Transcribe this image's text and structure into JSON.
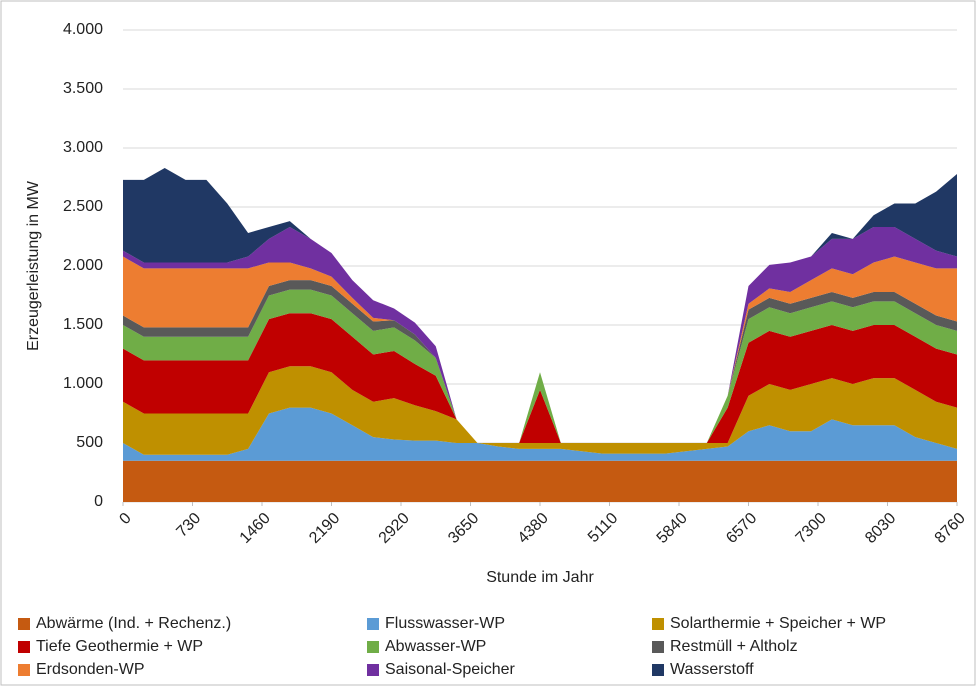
{
  "chart_data": {
    "type": "stacked_area",
    "y_label": "Erzeugerleistung in MW",
    "x_label": "Stunde im Jahr",
    "x": [
      0,
      219,
      438,
      657,
      876,
      1095,
      1314,
      1533,
      1752,
      1971,
      2190,
      2409,
      2628,
      2847,
      3066,
      3285,
      3504,
      3723,
      3942,
      4161,
      4380,
      4599,
      4818,
      5037,
      5256,
      5475,
      5694,
      5913,
      6132,
      6351,
      6570,
      6789,
      7008,
      7227,
      7446,
      7665,
      7884,
      8103,
      8322,
      8541,
      8760
    ],
    "xlim": [
      0,
      8760
    ],
    "xticks": [
      0,
      730,
      1460,
      2190,
      2920,
      3650,
      4380,
      5110,
      5840,
      6570,
      7300,
      8030,
      8760
    ],
    "ylim": [
      0,
      4000
    ],
    "yticks": [
      0,
      {
        "value": 500,
        "label": "500"
      },
      {
        "value": 1000,
        "label": "1.000"
      },
      {
        "value": 1500,
        "label": "1.500"
      },
      {
        "value": 2000,
        "label": "2.000"
      },
      {
        "value": 2500,
        "label": "2.500"
      },
      {
        "value": 3000,
        "label": "3.000"
      },
      {
        "value": 3500,
        "label": "3.500"
      },
      {
        "value": 4000,
        "label": "4.000"
      }
    ],
    "grid": true,
    "legend": "bottom",
    "series": [
      {
        "name": "Abwärme (Ind. + Rechenz.)",
        "color": "#c55a11",
        "values": [
          350,
          350,
          350,
          350,
          350,
          350,
          350,
          350,
          350,
          350,
          350,
          350,
          350,
          350,
          350,
          350,
          350,
          350,
          350,
          350,
          350,
          350,
          350,
          350,
          350,
          350,
          350,
          350,
          350,
          350,
          350,
          350,
          350,
          350,
          350,
          350,
          350,
          350,
          350,
          350,
          350
        ]
      },
      {
        "name": "Flusswasser-WP",
        "color": "#5b9bd5",
        "values": [
          150,
          50,
          50,
          50,
          50,
          50,
          100,
          400,
          450,
          450,
          400,
          300,
          200,
          180,
          170,
          170,
          150,
          150,
          120,
          100,
          100,
          100,
          80,
          60,
          60,
          60,
          60,
          80,
          100,
          120,
          250,
          300,
          250,
          250,
          350,
          300,
          300,
          300,
          200,
          150,
          100
        ]
      },
      {
        "name": "Solarthermie + Speicher + WP",
        "color": "#bf9000",
        "values": [
          350,
          350,
          350,
          350,
          350,
          350,
          300,
          350,
          350,
          350,
          350,
          300,
          300,
          350,
          300,
          250,
          200,
          0,
          30,
          50,
          50,
          50,
          70,
          90,
          90,
          90,
          90,
          70,
          50,
          30,
          300,
          350,
          350,
          400,
          350,
          350,
          400,
          400,
          400,
          350,
          350
        ]
      },
      {
        "name": "Tiefe Geothermie + WP",
        "color": "#c00000",
        "values": [
          450,
          450,
          450,
          450,
          450,
          450,
          450,
          450,
          450,
          450,
          450,
          450,
          400,
          400,
          350,
          300,
          0,
          0,
          0,
          0,
          450,
          0,
          0,
          0,
          0,
          0,
          0,
          0,
          0,
          300,
          450,
          450,
          450,
          450,
          450,
          450,
          450,
          450,
          450,
          450,
          450
        ]
      },
      {
        "name": "Abwasser-WP",
        "color": "#70ad47",
        "values": [
          200,
          200,
          200,
          200,
          200,
          200,
          200,
          200,
          200,
          200,
          200,
          200,
          200,
          200,
          200,
          150,
          0,
          0,
          0,
          0,
          150,
          0,
          0,
          0,
          0,
          0,
          0,
          0,
          0,
          100,
          200,
          200,
          200,
          200,
          200,
          200,
          200,
          200,
          200,
          200,
          200
        ]
      },
      {
        "name": "Restmüll + Altholz",
        "color": "#595959",
        "values": [
          80,
          80,
          80,
          80,
          80,
          80,
          80,
          80,
          80,
          80,
          80,
          80,
          80,
          60,
          50,
          0,
          0,
          0,
          0,
          0,
          0,
          0,
          0,
          0,
          0,
          0,
          0,
          0,
          0,
          0,
          80,
          80,
          80,
          80,
          80,
          80,
          80,
          80,
          80,
          80,
          80
        ]
      },
      {
        "name": "Erdsonden-WP",
        "color": "#ed7d31",
        "values": [
          500,
          500,
          500,
          500,
          500,
          500,
          500,
          200,
          150,
          100,
          80,
          50,
          30,
          0,
          0,
          0,
          0,
          0,
          0,
          0,
          0,
          0,
          0,
          0,
          0,
          0,
          0,
          0,
          0,
          0,
          50,
          80,
          100,
          150,
          200,
          200,
          250,
          300,
          350,
          400,
          450
        ]
      },
      {
        "name": "Saisonal-Speicher",
        "color": "#7030a0",
        "values": [
          50,
          50,
          50,
          50,
          50,
          50,
          100,
          200,
          300,
          250,
          200,
          150,
          150,
          100,
          100,
          100,
          0,
          0,
          0,
          0,
          0,
          0,
          0,
          0,
          0,
          0,
          0,
          0,
          0,
          0,
          150,
          200,
          250,
          200,
          250,
          300,
          300,
          250,
          200,
          150,
          100
        ]
      },
      {
        "name": "Wasserstoff",
        "color": "#203864",
        "values": [
          600,
          700,
          800,
          700,
          700,
          500,
          200,
          100,
          50,
          0,
          0,
          0,
          0,
          0,
          0,
          0,
          0,
          0,
          0,
          0,
          0,
          0,
          0,
          0,
          0,
          0,
          0,
          0,
          0,
          0,
          0,
          0,
          0,
          0,
          50,
          0,
          100,
          200,
          300,
          500,
          700
        ]
      }
    ]
  }
}
